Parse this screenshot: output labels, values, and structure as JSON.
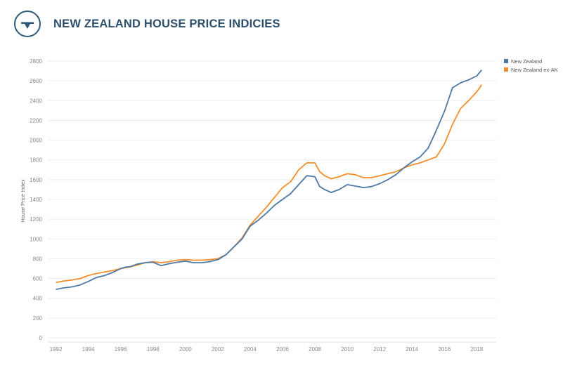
{
  "header": {
    "title": "NEW ZEALAND HOUSE PRICE INDICIES",
    "logo_icon": "scale-logo-icon"
  },
  "colors": {
    "title": "#2d4f6b",
    "series_nz": "#4e79a7",
    "series_exak": "#f28e2b",
    "grid": "#eeeeee",
    "axis_text": "#888888"
  },
  "chart_data": {
    "type": "line",
    "title": "NEW ZEALAND HOUSE PRICE INDICIES",
    "xlabel": "",
    "ylabel": "House Price Index",
    "xlim": [
      1991.5,
      2019.2
    ],
    "ylim": [
      0,
      2800
    ],
    "xticks": [
      1992,
      1994,
      1996,
      1998,
      2000,
      2002,
      2004,
      2006,
      2008,
      2010,
      2012,
      2014,
      2016,
      2018
    ],
    "yticks": [
      0,
      200,
      400,
      600,
      800,
      1000,
      1200,
      1400,
      1600,
      1800,
      2000,
      2200,
      2400,
      2600,
      2800
    ],
    "legend_position": "top-right",
    "series": [
      {
        "name": "New Zealand",
        "color": "#4e79a7",
        "x": [
          1992.0,
          1992.5,
          1993.0,
          1993.5,
          1994.0,
          1994.5,
          1995.0,
          1995.5,
          1996.0,
          1996.3,
          1996.6,
          1997.0,
          1997.5,
          1998.0,
          1998.5,
          1999.0,
          1999.5,
          2000.0,
          2000.5,
          2001.0,
          2001.5,
          2002.0,
          2002.5,
          2003.0,
          2003.5,
          2004.0,
          2004.5,
          2005.0,
          2005.5,
          2006.0,
          2006.5,
          2007.0,
          2007.5,
          2008.0,
          2008.3,
          2008.6,
          2009.0,
          2009.5,
          2010.0,
          2010.5,
          2011.0,
          2011.5,
          2012.0,
          2012.5,
          2013.0,
          2013.5,
          2014.0,
          2014.5,
          2015.0,
          2015.5,
          2016.0,
          2016.5,
          2017.0,
          2017.5,
          2018.0,
          2018.3
        ],
        "values": [
          490,
          505,
          515,
          535,
          570,
          610,
          630,
          660,
          700,
          715,
          720,
          745,
          760,
          765,
          730,
          750,
          765,
          775,
          760,
          760,
          770,
          790,
          840,
          920,
          1000,
          1130,
          1190,
          1260,
          1340,
          1400,
          1460,
          1550,
          1640,
          1630,
          1530,
          1500,
          1470,
          1500,
          1550,
          1535,
          1520,
          1530,
          1560,
          1600,
          1650,
          1720,
          1780,
          1830,
          1920,
          2100,
          2290,
          2530,
          2580,
          2610,
          2650,
          2710
        ]
      },
      {
        "name": "New Zealand ex-AK",
        "color": "#f28e2b",
        "x": [
          1992.0,
          1992.5,
          1993.0,
          1993.5,
          1994.0,
          1994.5,
          1995.0,
          1995.5,
          1996.0,
          1996.5,
          1997.0,
          1997.5,
          1998.0,
          1998.5,
          1999.0,
          1999.5,
          2000.0,
          2000.5,
          2001.0,
          2001.5,
          2002.0,
          2002.5,
          2003.0,
          2003.5,
          2004.0,
          2004.5,
          2005.0,
          2005.5,
          2006.0,
          2006.5,
          2007.0,
          2007.5,
          2008.0,
          2008.3,
          2008.6,
          2009.0,
          2009.5,
          2010.0,
          2010.5,
          2011.0,
          2011.5,
          2012.0,
          2012.5,
          2013.0,
          2013.5,
          2014.0,
          2014.5,
          2015.0,
          2015.5,
          2016.0,
          2016.5,
          2017.0,
          2017.5,
          2018.0,
          2018.3
        ],
        "values": [
          560,
          575,
          585,
          600,
          630,
          650,
          665,
          680,
          700,
          715,
          735,
          760,
          770,
          760,
          770,
          785,
          790,
          785,
          785,
          790,
          800,
          840,
          920,
          1010,
          1140,
          1230,
          1320,
          1420,
          1520,
          1580,
          1700,
          1770,
          1770,
          1680,
          1640,
          1610,
          1630,
          1660,
          1650,
          1620,
          1620,
          1640,
          1660,
          1680,
          1720,
          1750,
          1770,
          1800,
          1830,
          1960,
          2160,
          2320,
          2400,
          2490,
          2560
        ]
      }
    ]
  }
}
